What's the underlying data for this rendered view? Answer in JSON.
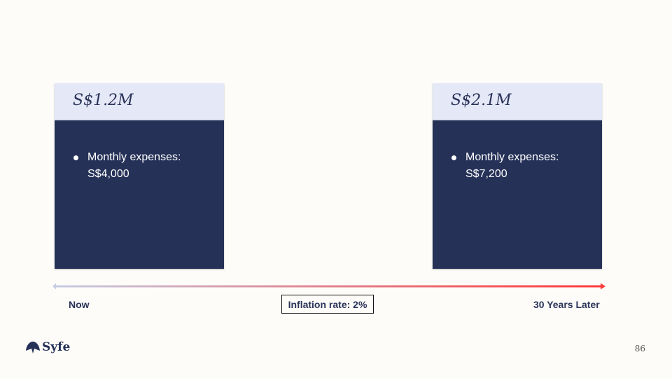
{
  "cards": [
    {
      "title": "S$1.2M",
      "bullet": "Monthly expenses: S$4,000"
    },
    {
      "title": "S$2.1M",
      "bullet": "Monthly expenses: S$7,200"
    }
  ],
  "timeline": {
    "start_label": "Now",
    "end_label": "30 Years Later",
    "inflation_label": "Inflation rate: 2%",
    "gradient_start_color": "#c6cde4",
    "gradient_end_color": "#ff3a3a"
  },
  "footer": {
    "brand": "Syfe",
    "page_number": "86"
  },
  "colors": {
    "card_body": "#253157",
    "card_header": "#e4e8f7",
    "text_navy": "#2b3459"
  }
}
